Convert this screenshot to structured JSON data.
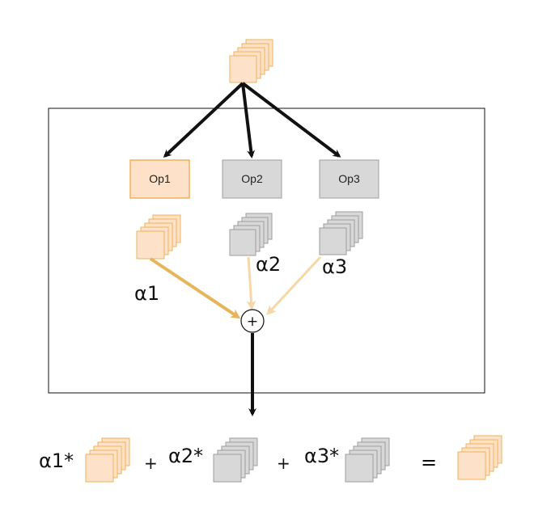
{
  "diagram": {
    "operations": [
      {
        "label": "Op1",
        "fill": "#fde1c9",
        "stroke": "#eeb358"
      },
      {
        "label": "Op2",
        "fill": "#d8d8d8",
        "stroke": "#9e9e9e"
      },
      {
        "label": "Op3",
        "fill": "#d8d8d8",
        "stroke": "#9e9e9e"
      }
    ],
    "weights": [
      {
        "label": "α1",
        "edge_color": "#e8b45a"
      },
      {
        "label": "α2",
        "edge_color": "#f6d7a6"
      },
      {
        "label": "α3",
        "edge_color": "#f6d7a6"
      }
    ],
    "sum_node": {
      "symbol": "+"
    },
    "equation": {
      "terms": [
        "α1*",
        "α2*",
        "α3*"
      ],
      "plus_symbol": "+",
      "equals_symbol": "="
    },
    "colors": {
      "orange_fill": "#fde1c9",
      "orange_stroke": "#eeb358",
      "gray_fill": "#d8d8d8",
      "gray_stroke": "#9e9e9e",
      "arrow": "#111111"
    }
  }
}
